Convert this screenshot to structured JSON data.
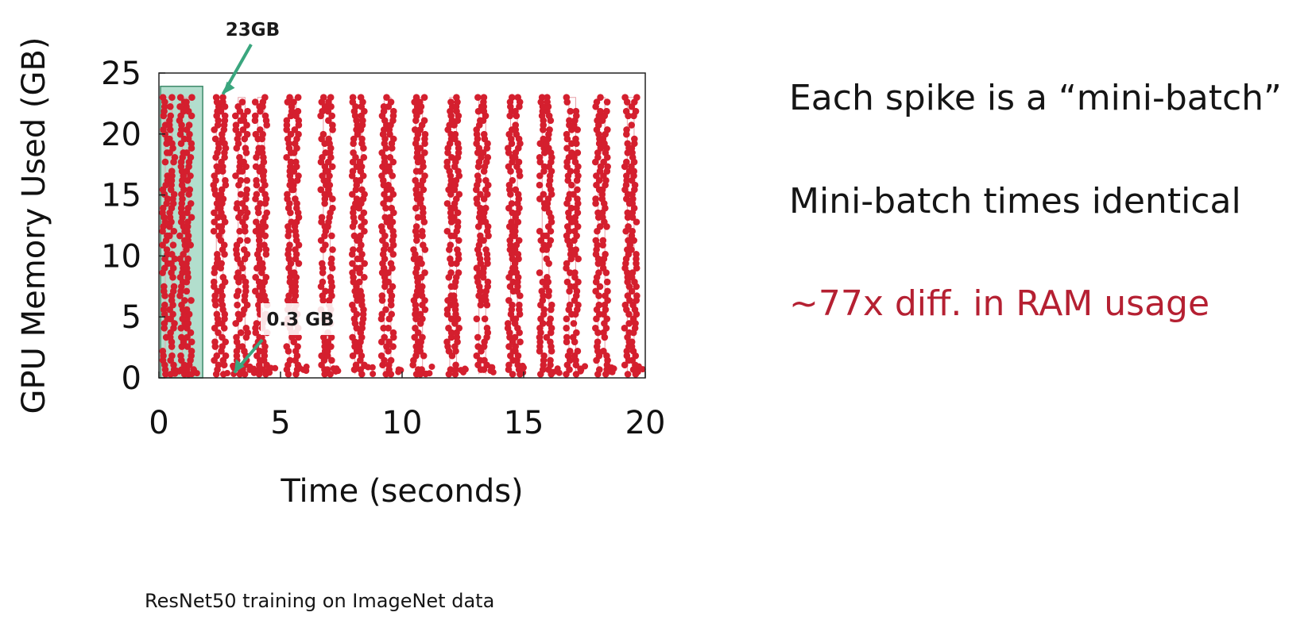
{
  "chart_data": {
    "type": "scatter",
    "xlabel": "Time (seconds)",
    "ylabel": "GPU Memory Used (GB)",
    "xlim": [
      0,
      20
    ],
    "ylim": [
      0,
      25
    ],
    "x_ticks": [
      0,
      5,
      10,
      15,
      20
    ],
    "y_ticks": [
      0,
      5,
      10,
      15,
      20,
      25
    ],
    "grid": false,
    "series_color": "#d41f2e",
    "spike_peak_gb": 23,
    "spike_base_gb": 0.3,
    "spike_x": [
      0.4,
      1.1,
      2.5,
      3.4,
      4.2,
      5.5,
      6.9,
      8.2,
      9.4,
      10.7,
      12.1,
      13.3,
      14.6,
      15.9,
      17.0,
      18.2,
      19.4
    ],
    "highlight": {
      "x_range": [
        0,
        1.8
      ],
      "color": "#7ec8ab"
    },
    "annotations": [
      {
        "text": "23GB",
        "points_to": [
          2.5,
          23
        ]
      },
      {
        "text": "0.3 GB",
        "points_to": [
          3.1,
          0.3
        ]
      }
    ]
  },
  "notes": {
    "line1": "Each spike is a “mini-batch”",
    "line2": "Mini-batch times identical",
    "line3": "~77x diff. in RAM usage",
    "accent_color": "#b52032"
  },
  "caption": "ResNet50 training on ImageNet data"
}
